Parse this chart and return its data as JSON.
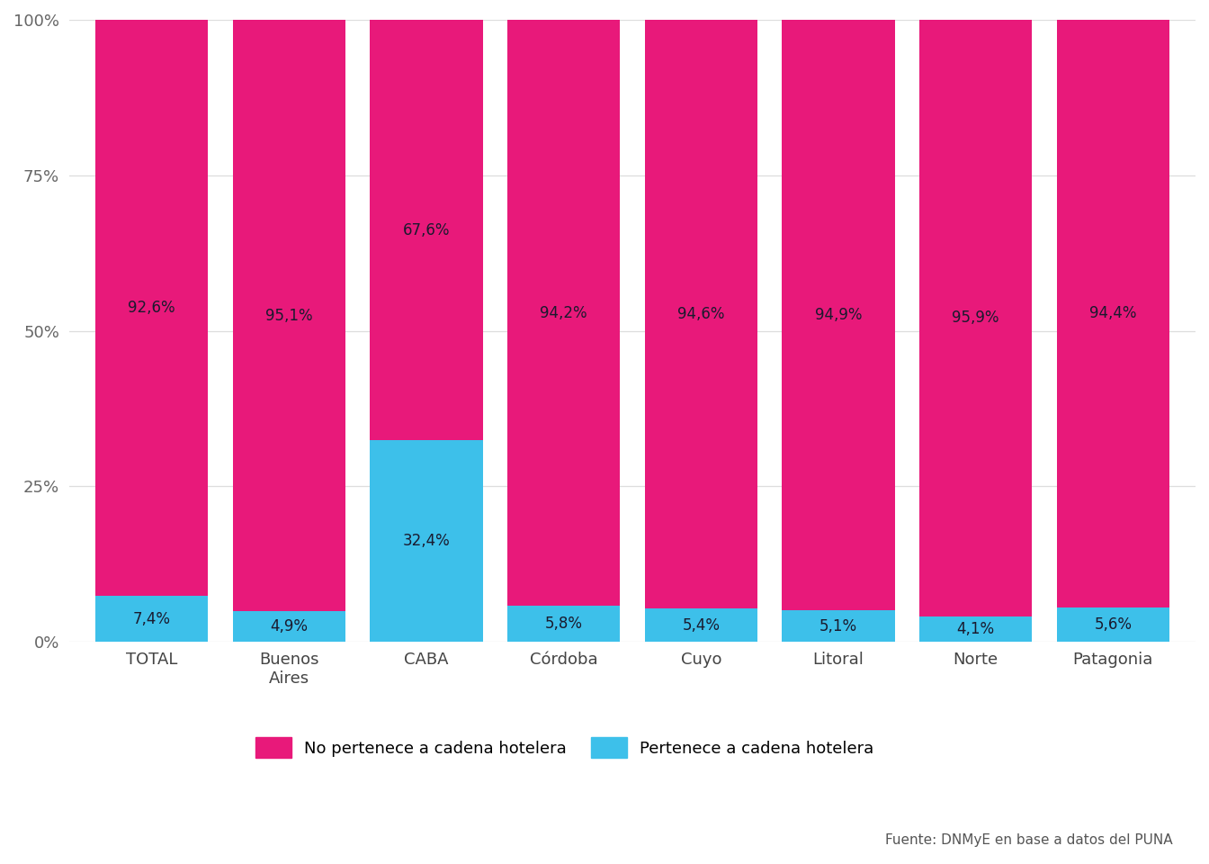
{
  "categories": [
    "TOTAL",
    "Buenos\nAires",
    "CABA",
    "Córdoba",
    "Cuyo",
    "Litoral",
    "Norte",
    "Patagonia"
  ],
  "pertenece": [
    7.4,
    4.9,
    32.4,
    5.8,
    5.4,
    5.1,
    4.1,
    5.6
  ],
  "no_pertenece": [
    92.6,
    95.1,
    67.6,
    94.2,
    94.6,
    94.9,
    95.9,
    94.4
  ],
  "color_no_pertenece": "#E8197A",
  "color_pertenece": "#3DC0EA",
  "background_color": "#FFFFFF",
  "grid_color": "#DDDDDD",
  "legend_label_no": "No pertenece a cadena hotelera",
  "legend_label_si": "Pertenece a cadena hotelera",
  "source_text": "Fuente: DNMyE en base a datos del PUNA",
  "yticks": [
    0,
    25,
    50,
    75,
    100
  ],
  "ytick_labels": [
    "0%",
    "25%",
    "50%",
    "75%",
    "100%"
  ],
  "bar_width": 0.82,
  "label_fontsize": 12,
  "tick_fontsize": 13,
  "legend_fontsize": 13,
  "source_fontsize": 11,
  "label_color": "#1a1a2e"
}
